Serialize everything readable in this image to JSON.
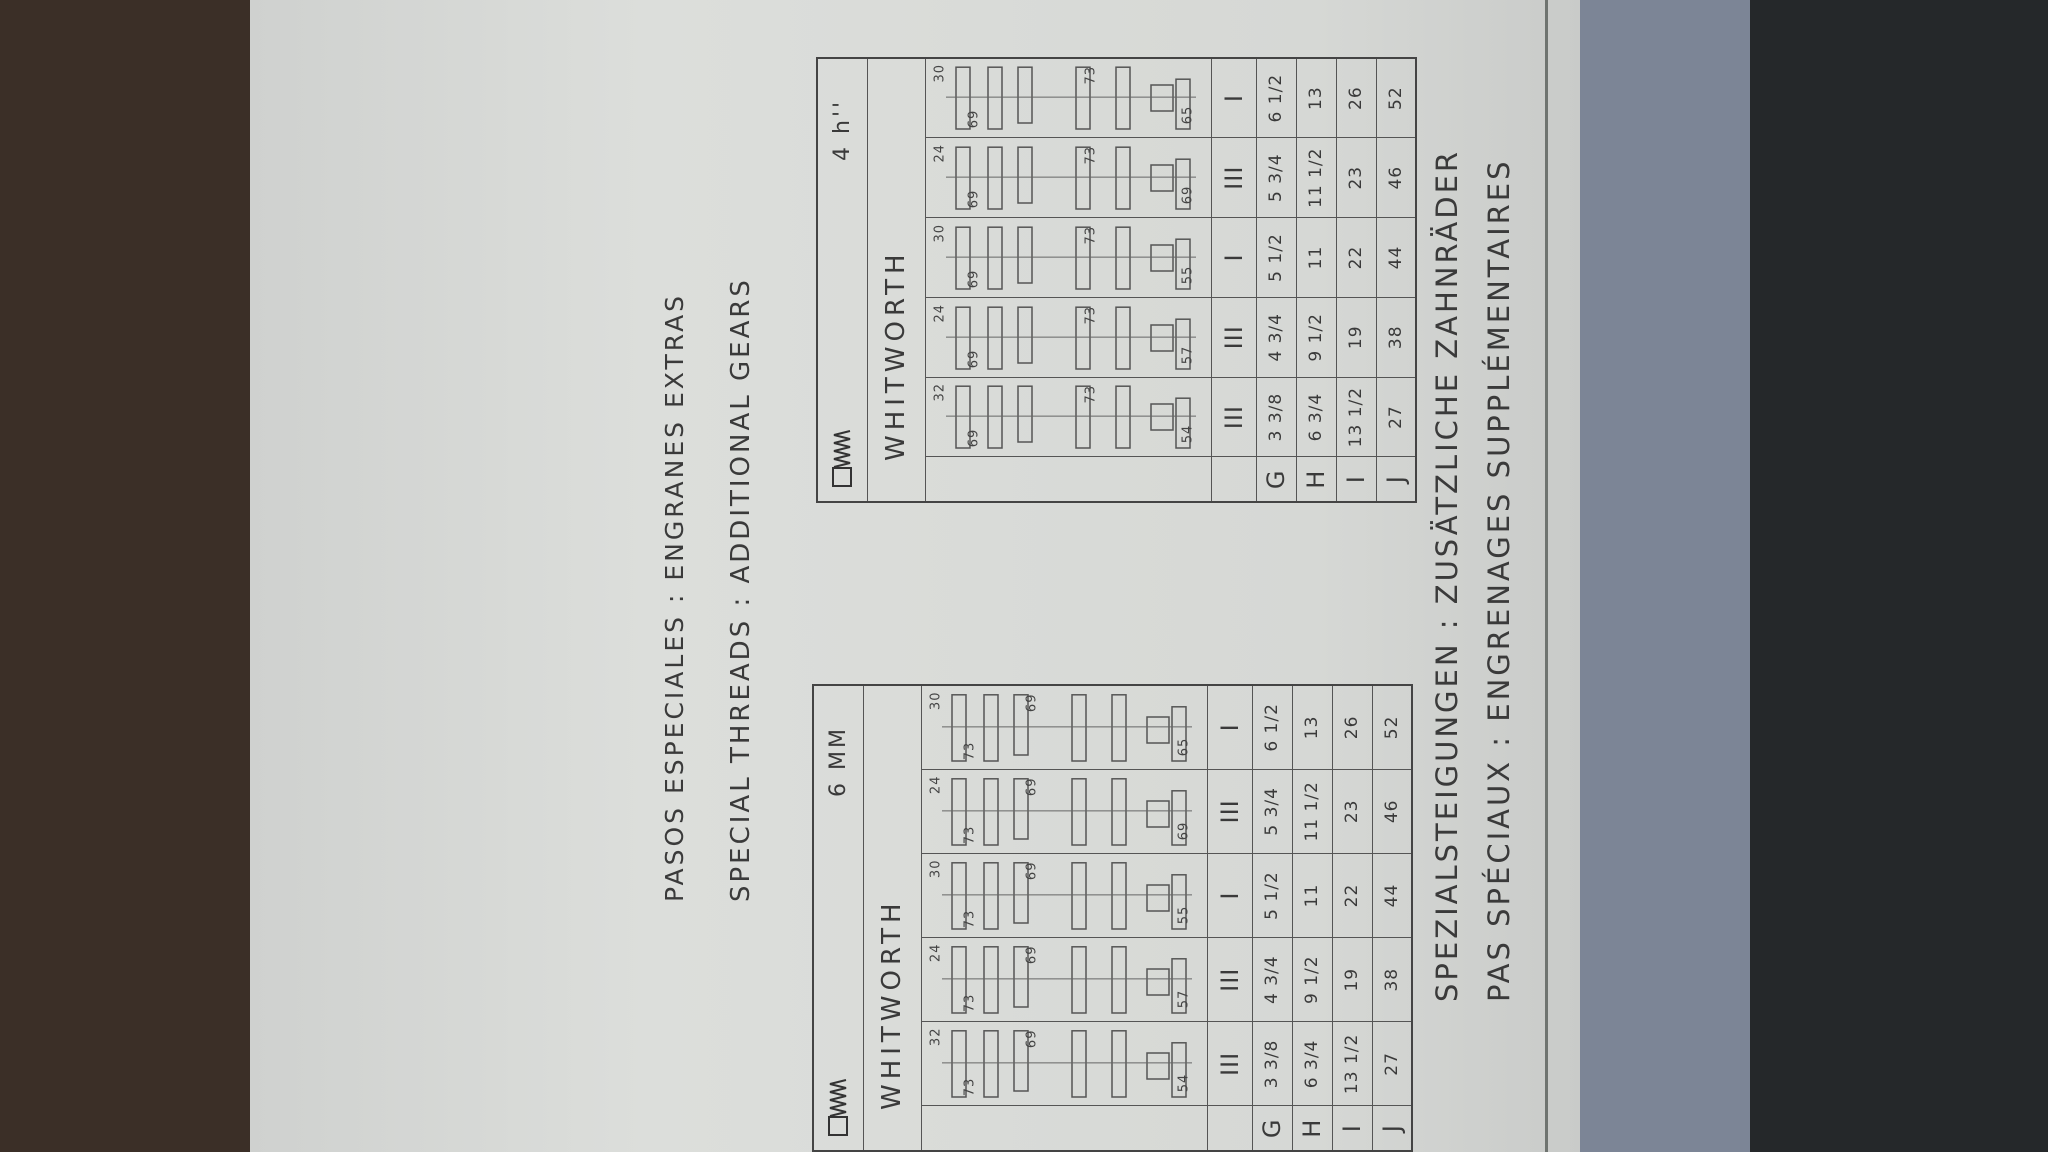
{
  "heading": {
    "line1": "PASOS ESPECIALES : ENGRANES EXTRAS",
    "line2": "SPECIAL THREADS : ADDITIONAL GEARS"
  },
  "tables": [
    {
      "header": "6 MM",
      "title": "WHITWORTH",
      "gears": [
        [
          32,
          73,
          69,
          54
        ],
        [
          24,
          73,
          69,
          57
        ],
        [
          30,
          73,
          69,
          55
        ],
        [
          24,
          73,
          69,
          69
        ],
        [
          30,
          73,
          69,
          65
        ]
      ],
      "ratios": [
        "III",
        "III",
        "I",
        "III",
        "I"
      ],
      "rows": [
        {
          "label": "G",
          "cells": [
            "3 3/8",
            "4 3/4",
            "5 1/2",
            "5 3/4",
            "6 1/2"
          ]
        },
        {
          "label": "H",
          "cells": [
            "6 3/4",
            "9 1/2",
            "11",
            "11 1/2",
            "13"
          ]
        },
        {
          "label": "I",
          "cells": [
            "13 1/2",
            "19",
            "22",
            "23",
            "26"
          ]
        },
        {
          "label": "J",
          "cells": [
            "27",
            "38",
            "44",
            "46",
            "52"
          ]
        }
      ]
    },
    {
      "header": "4 h''",
      "title": "WHITWORTH",
      "gears": [
        [
          32,
          69,
          73,
          54
        ],
        [
          24,
          69,
          73,
          57
        ],
        [
          30,
          69,
          73,
          55
        ],
        [
          24,
          69,
          73,
          69
        ],
        [
          30,
          69,
          73,
          65
        ]
      ],
      "ratios": [
        "III",
        "III",
        "I",
        "III",
        "I"
      ],
      "rows": [
        {
          "label": "G",
          "cells": [
            "3 3/8",
            "4 3/4",
            "5 1/2",
            "5 3/4",
            "6 1/2"
          ]
        },
        {
          "label": "H",
          "cells": [
            "6 3/4",
            "9 1/2",
            "11",
            "11 1/2",
            "13"
          ]
        },
        {
          "label": "I",
          "cells": [
            "13 1/2",
            "19",
            "22",
            "23",
            "26"
          ]
        },
        {
          "label": "J",
          "cells": [
            "27",
            "38",
            "44",
            "46",
            "52"
          ]
        }
      ]
    }
  ],
  "footer": {
    "line1": "SPEZIALSTEIGUNGEN : ZUSÄTZLICHE ZAHNRÄDER",
    "line2": "PAS SPÉCIAUX : ENGRENAGES SUPPLÉMENTAIRES"
  }
}
